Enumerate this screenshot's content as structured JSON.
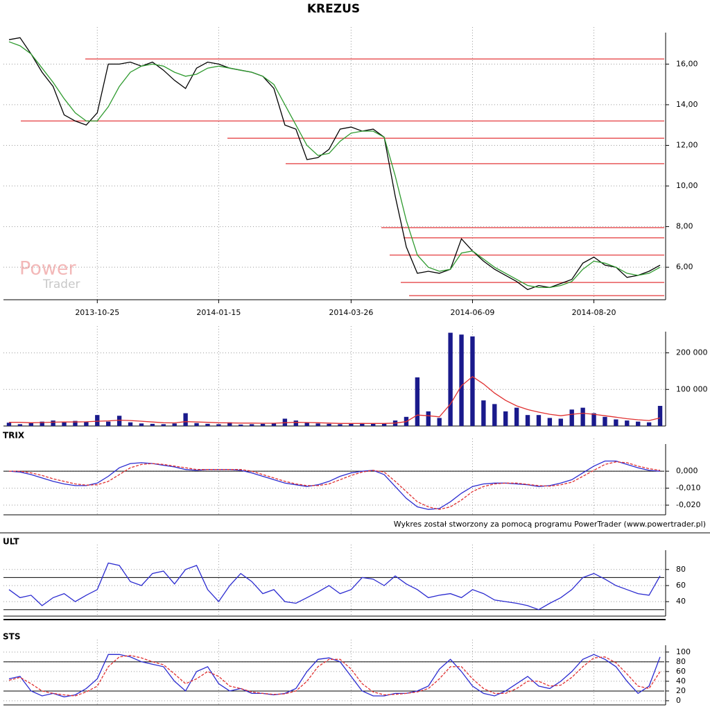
{
  "chart_data": [
    {
      "type": "line",
      "title": "KREZUS",
      "categories": [
        null,
        null,
        null,
        null,
        null,
        null,
        null,
        null,
        "2013-10-25",
        null,
        null,
        null,
        null,
        null,
        null,
        null,
        null,
        null,
        null,
        "2014-01-15",
        null,
        null,
        null,
        null,
        null,
        null,
        null,
        null,
        null,
        null,
        null,
        "2014-03-26",
        null,
        null,
        null,
        null,
        null,
        null,
        null,
        null,
        null,
        null,
        "2014-06-09",
        null,
        null,
        null,
        null,
        null,
        null,
        null,
        null,
        null,
        null,
        "2014-08-20",
        null,
        null,
        null,
        null,
        null,
        null
      ],
      "series": [
        {
          "color": "#000000",
          "values": [
            17.2,
            17.3,
            16.5,
            15.6,
            14.9,
            13.5,
            13.2,
            13.0,
            13.6,
            16.0,
            16.0,
            16.1,
            15.9,
            16.1,
            15.7,
            15.2,
            14.8,
            15.8,
            16.1,
            16.0,
            15.8,
            15.7,
            15.6,
            15.4,
            14.8,
            13.0,
            12.8,
            11.3,
            11.4,
            11.8,
            12.8,
            12.9,
            12.7,
            12.8,
            12.4,
            9.5,
            7.0,
            5.7,
            5.8,
            5.7,
            5.9,
            7.4,
            6.8,
            6.3,
            5.9,
            5.6,
            5.3,
            4.9,
            5.1,
            5.0,
            5.2,
            5.4,
            6.2,
            6.5,
            6.1,
            6.0,
            5.5,
            5.6,
            5.8,
            6.1
          ]
        },
        {
          "color": "#2e9a2e",
          "values": [
            17.1,
            16.9,
            16.5,
            15.8,
            15.1,
            14.3,
            13.6,
            13.2,
            13.2,
            13.9,
            14.9,
            15.6,
            15.9,
            16.0,
            15.9,
            15.6,
            15.4,
            15.5,
            15.8,
            15.9,
            15.8,
            15.7,
            15.6,
            15.4,
            15.0,
            14.0,
            13.0,
            12.0,
            11.5,
            11.6,
            12.2,
            12.6,
            12.7,
            12.7,
            12.4,
            10.5,
            8.3,
            6.6,
            6.0,
            5.8,
            5.9,
            6.7,
            6.8,
            6.4,
            6.0,
            5.7,
            5.4,
            5.1,
            5.0,
            5.0,
            5.1,
            5.3,
            5.9,
            6.3,
            6.2,
            6.0,
            5.7,
            5.6,
            5.7,
            6.0
          ]
        }
      ],
      "hlines": [
        16.25,
        13.2,
        12.35,
        11.1,
        7.95,
        7.45,
        6.6,
        5.25,
        4.6
      ],
      "hline_color": "#e8585a",
      "ylim": [
        4.4,
        17.55
      ],
      "yticks": [
        {
          "value": 6,
          "label": "6,00"
        },
        {
          "value": 8,
          "label": "8,00"
        },
        {
          "value": 10,
          "label": "10,00"
        },
        {
          "value": 12,
          "label": "12,00"
        },
        {
          "value": 14,
          "label": "14,00"
        },
        {
          "value": 16,
          "label": "16,00"
        }
      ],
      "grid": true
    },
    {
      "type": "bar",
      "color": "#1a1a8c",
      "values": [
        9000,
        5000,
        8000,
        12000,
        15000,
        10000,
        14000,
        11000,
        30000,
        12000,
        28000,
        10000,
        7000,
        6000,
        5000,
        7000,
        35000,
        8000,
        6000,
        5000,
        10000,
        4000,
        5000,
        6000,
        8000,
        20000,
        15000,
        9000,
        7000,
        6000,
        5000,
        6000,
        8000,
        6000,
        7000,
        15000,
        25000,
        133000,
        40000,
        22000,
        255000,
        250000,
        245000,
        70000,
        60000,
        40000,
        50000,
        30000,
        30000,
        22000,
        20000,
        45000,
        50000,
        35000,
        25000,
        18000,
        15000,
        12000,
        10000,
        55000
      ],
      "series": [
        {
          "color": "#e03030",
          "values": [
            10000,
            10000,
            9000,
            9500,
            10500,
            11000,
            11000,
            11500,
            13000,
            14000,
            16000,
            15000,
            13000,
            11000,
            9000,
            8500,
            12000,
            11000,
            10000,
            9000,
            8500,
            8000,
            8000,
            7500,
            7500,
            9000,
            10000,
            9500,
            9000,
            8000,
            7000,
            7000,
            7000,
            7000,
            7000,
            8000,
            12000,
            30000,
            28000,
            25000,
            60000,
            110000,
            135000,
            115000,
            90000,
            70000,
            55000,
            45000,
            38000,
            32000,
            28000,
            32000,
            35000,
            32000,
            28000,
            24000,
            20000,
            17000,
            15000,
            22000
          ]
        }
      ],
      "ylim": [
        0,
        258000
      ],
      "yticks": [
        {
          "value": 100000,
          "label": "100 000"
        },
        {
          "value": 200000,
          "label": "200 000"
        }
      ],
      "grid": true
    },
    {
      "type": "line",
      "title": "TRIX",
      "series": [
        {
          "color": "#2a2ad0",
          "values": [
            0,
            -0.0005,
            -0.002,
            -0.004,
            -0.006,
            -0.0075,
            -0.0085,
            -0.0085,
            -0.007,
            -0.003,
            0.002,
            0.0045,
            0.005,
            0.0045,
            0.0035,
            0.0025,
            0.001,
            0.0005,
            0.001,
            0.001,
            0.001,
            0.0005,
            -0.001,
            -0.003,
            -0.005,
            -0.007,
            -0.008,
            -0.009,
            -0.008,
            -0.006,
            -0.003,
            -0.001,
            0.0,
            0.0005,
            -0.002,
            -0.009,
            -0.016,
            -0.021,
            -0.0225,
            -0.022,
            -0.018,
            -0.013,
            -0.009,
            -0.0075,
            -0.007,
            -0.007,
            -0.0075,
            -0.008,
            -0.009,
            -0.0085,
            -0.007,
            -0.005,
            -0.001,
            0.003,
            0.006,
            0.006,
            0.004,
            0.002,
            0.0005,
            0
          ]
        },
        {
          "color": "#e03030",
          "dash": true,
          "values": [
            0,
            0,
            -0.001,
            -0.0025,
            -0.0045,
            -0.006,
            -0.0075,
            -0.0082,
            -0.008,
            -0.006,
            -0.002,
            0.002,
            0.004,
            0.0045,
            0.004,
            0.003,
            0.002,
            0.001,
            0.001,
            0.001,
            0.001,
            0.001,
            0.0,
            -0.002,
            -0.004,
            -0.006,
            -0.0075,
            -0.0085,
            -0.0085,
            -0.0075,
            -0.005,
            -0.0025,
            -0.0005,
            0.0005,
            -0.0005,
            -0.006,
            -0.012,
            -0.018,
            -0.021,
            -0.0225,
            -0.021,
            -0.017,
            -0.012,
            -0.009,
            -0.0075,
            -0.007,
            -0.007,
            -0.0078,
            -0.0085,
            -0.0088,
            -0.008,
            -0.0065,
            -0.003,
            0.0005,
            0.004,
            0.0055,
            0.005,
            0.003,
            0.0015,
            0.0005
          ]
        }
      ],
      "hlines": [
        0
      ],
      "hline_color": "#000000",
      "ylim": [
        -0.0257,
        0.016
      ],
      "yticks": [
        {
          "value": -0.02,
          "label": "-0,020"
        },
        {
          "value": -0.01,
          "label": "-0,010"
        },
        {
          "value": 0,
          "label": "0,000"
        }
      ],
      "grid": true
    },
    {
      "type": "line",
      "title": "ULT",
      "series": [
        {
          "color": "#2a2ad0",
          "values": [
            55,
            45,
            48,
            35,
            45,
            50,
            40,
            48,
            55,
            88,
            85,
            65,
            60,
            75,
            78,
            62,
            80,
            85,
            55,
            40,
            60,
            75,
            65,
            50,
            55,
            40,
            38,
            45,
            52,
            60,
            50,
            55,
            70,
            68,
            60,
            72,
            62,
            55,
            45,
            48,
            50,
            45,
            55,
            50,
            42,
            40,
            38,
            35,
            30,
            38,
            45,
            55,
            70,
            75,
            68,
            60,
            55,
            50,
            48,
            72
          ]
        }
      ],
      "hlines": [
        70,
        30
      ],
      "hline_color": "#000000",
      "ylim": [
        22,
        104
      ],
      "yticks": [
        40,
        60,
        80
      ],
      "grid": true
    },
    {
      "type": "line",
      "title": "STS",
      "series": [
        {
          "color": "#2a2ad0",
          "values": [
            45,
            50,
            20,
            10,
            15,
            8,
            12,
            25,
            45,
            95,
            95,
            90,
            80,
            75,
            70,
            40,
            20,
            60,
            70,
            35,
            20,
            25,
            15,
            15,
            12,
            15,
            25,
            60,
            85,
            88,
            80,
            50,
            20,
            10,
            10,
            15,
            15,
            20,
            30,
            65,
            85,
            60,
            30,
            15,
            10,
            20,
            35,
            50,
            30,
            25,
            40,
            60,
            85,
            95,
            85,
            70,
            40,
            15,
            30,
            90
          ]
        },
        {
          "color": "#e03030",
          "dash": true,
          "values": [
            42,
            48,
            35,
            20,
            15,
            12,
            10,
            18,
            30,
            70,
            90,
            93,
            88,
            80,
            74,
            55,
            35,
            45,
            60,
            50,
            30,
            25,
            18,
            15,
            13,
            14,
            20,
            40,
            70,
            85,
            85,
            65,
            35,
            18,
            12,
            13,
            15,
            18,
            25,
            45,
            70,
            70,
            45,
            25,
            15,
            15,
            25,
            40,
            40,
            30,
            32,
            48,
            70,
            88,
            90,
            78,
            55,
            30,
            25,
            60
          ]
        }
      ],
      "hlines": [
        80,
        20
      ],
      "hline_color": "#000000",
      "ylim": [
        -8.6,
        114
      ],
      "yticks": [
        0,
        20,
        40,
        60,
        80,
        100
      ],
      "grid": true
    }
  ],
  "footer": "Wykres został stworzony za pomocą programu PowerTrader (www.powertrader.pl)",
  "watermark": [
    "Power",
    "Trader"
  ]
}
